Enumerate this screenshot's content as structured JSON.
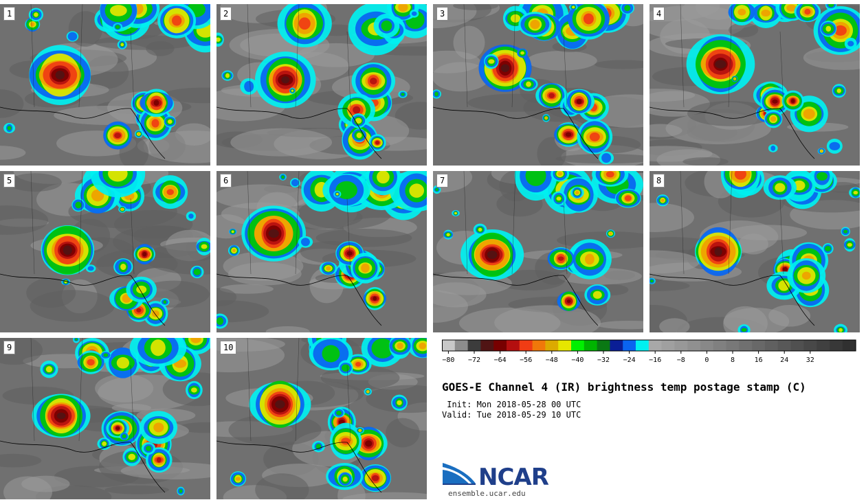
{
  "panels": [
    {
      "label": "1"
    },
    {
      "label": "2"
    },
    {
      "label": "3"
    },
    {
      "label": "4"
    },
    {
      "label": "5"
    },
    {
      "label": "6"
    },
    {
      "label": "7"
    },
    {
      "label": "8"
    },
    {
      "label": "9"
    },
    {
      "label": "10"
    }
  ],
  "colorbar": {
    "colors": [
      "#c8c8c8",
      "#8c8c8c",
      "#3c3c3c",
      "#501414",
      "#780000",
      "#b40f0f",
      "#f03c14",
      "#f0780a",
      "#dcaa00",
      "#e6e600",
      "#00f000",
      "#00b400",
      "#0a7814",
      "#0a1e96",
      "#0a64f0",
      "#00f0f0",
      "#a8a8a8",
      "#a0a0a0",
      "#989898",
      "#909090",
      "#888888",
      "#808080",
      "#787878",
      "#707070",
      "#686868",
      "#606060",
      "#585858",
      "#505050",
      "#484848",
      "#404040",
      "#383838",
      "#303030"
    ],
    "ticks": [
      "−80",
      "−72",
      "−64",
      "−56",
      "−48",
      "−40",
      "−32",
      "−24",
      "−16",
      "−8",
      "0",
      "8",
      "16",
      "24",
      "32"
    ]
  },
  "title": "GOES-E Channel 4 (IR) brightness temp postage stamp (C)",
  "init": " Init: Mon 2018-05-28 00 UTC",
  "valid": "Valid: Tue 2018-05-29 10 UTC",
  "logo": {
    "word": "NCAR",
    "url": "ensemble.ucar.edu"
  }
}
